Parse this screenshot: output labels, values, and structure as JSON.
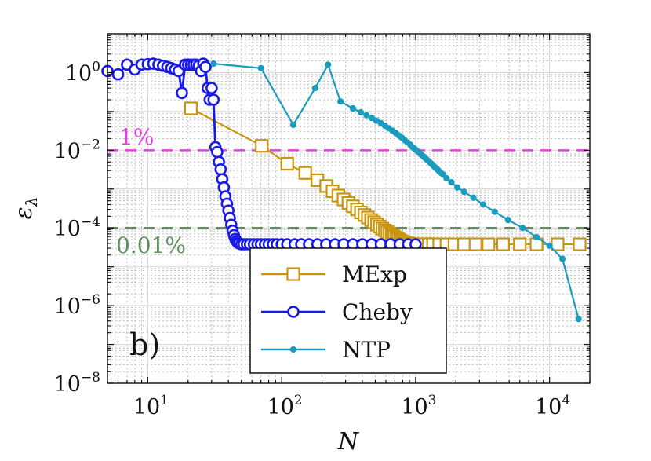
{
  "chart_data": {
    "type": "line",
    "title": "",
    "xlabel": "N",
    "ylabel": "ε",
    "ylabel_sub": "λ",
    "xscale": "log",
    "yscale": "log",
    "xlim": [
      5,
      20000
    ],
    "ylim": [
      1e-08,
      10
    ],
    "grid": true,
    "legend_position": "bottom-right",
    "x_ticks": [
      {
        "value": 10,
        "base": "10",
        "exp": "1"
      },
      {
        "value": 100,
        "base": "10",
        "exp": "2"
      },
      {
        "value": 1000,
        "base": "10",
        "exp": "3"
      },
      {
        "value": 10000,
        "base": "10",
        "exp": "4"
      }
    ],
    "y_ticks": [
      {
        "value": 1,
        "base": "10",
        "exp": "0"
      },
      {
        "value": 0.01,
        "base": "10",
        "exp": "−2"
      },
      {
        "value": 0.0001,
        "base": "10",
        "exp": "−4"
      },
      {
        "value": 1e-06,
        "base": "10",
        "exp": "−6"
      },
      {
        "value": 1e-08,
        "base": "10",
        "exp": "−8"
      }
    ],
    "reference_lines": [
      {
        "label": "1%",
        "value": 0.01,
        "color": "#e43fe3"
      },
      {
        "label": "0.01%",
        "value": 0.0001,
        "color": "#5e8f5e"
      }
    ],
    "panel_label": "b)",
    "series": [
      {
        "name": "MExp",
        "color": "#c9960e",
        "marker": "square",
        "x": [
          21,
          71,
          110,
          150,
          185,
          215,
          240,
          265,
          290,
          315,
          340,
          365,
          390,
          415,
          440,
          465,
          490,
          515,
          540,
          565,
          590,
          615,
          640,
          665,
          690,
          715,
          740,
          765,
          790,
          815,
          840,
          865,
          890,
          915,
          940,
          965,
          990,
          1050,
          1150,
          1250,
          1350,
          1500,
          1700,
          1950,
          2300,
          2800,
          3500,
          4500,
          6000,
          8000,
          11500,
          16800
        ],
        "y": [
          0.12,
          0.013,
          0.0045,
          0.0026,
          0.0017,
          0.0012,
          0.00088,
          0.00068,
          0.00054,
          0.00044,
          0.00036,
          0.0003,
          0.00025,
          0.000215,
          0.000185,
          0.00016,
          0.00014,
          0.000122,
          0.000108,
          9.6e-05,
          8.6e-05,
          7.8e-05,
          7.1e-05,
          6.5e-05,
          6e-05,
          5.5e-05,
          5.1e-05,
          4.8e-05,
          4.5e-05,
          4.3e-05,
          4.1e-05,
          4e-05,
          3.9e-05,
          3.8e-05,
          3.8e-05,
          3.8e-05,
          3.8e-05,
          3.8e-05,
          3.8e-05,
          3.8e-05,
          3.8e-05,
          3.8e-05,
          3.8e-05,
          3.8e-05,
          3.8e-05,
          3.8e-05,
          3.8e-05,
          3.8e-05,
          3.8e-05,
          3.8e-05,
          3.8e-05,
          3.8e-05
        ]
      },
      {
        "name": "Cheby",
        "color": "#1a1ae6",
        "marker": "circle",
        "x": [
          5,
          6,
          7,
          8,
          9,
          10,
          11,
          12,
          13,
          14,
          15,
          16,
          17,
          18,
          19,
          20,
          21,
          22,
          23,
          24,
          25,
          26,
          27,
          28,
          29,
          30,
          31,
          32,
          33,
          34,
          35,
          36,
          37,
          38,
          39,
          40,
          41,
          42,
          43,
          44,
          45,
          46,
          47,
          48,
          50,
          52,
          55,
          58,
          62,
          66,
          70,
          75,
          80,
          86,
          92,
          100,
          110,
          125,
          140,
          160,
          185,
          215,
          250,
          290,
          340,
          400,
          470,
          550,
          650,
          760,
          880,
          1000
        ],
        "y": [
          1.1,
          0.9,
          1.6,
          1.2,
          1.6,
          1.65,
          1.7,
          1.6,
          1.5,
          1.4,
          1.3,
          1.2,
          1.1,
          0.3,
          1.6,
          1.6,
          1.6,
          1.6,
          1.6,
          1.5,
          1.1,
          1.7,
          1.4,
          0.4,
          0.2,
          0.4,
          0.2,
          0.012,
          0.009,
          0.005,
          0.0032,
          0.0018,
          0.0011,
          0.00065,
          0.00042,
          0.00028,
          0.00018,
          0.00012,
          8.5e-05,
          6.5e-05,
          5.2e-05,
          4.6e-05,
          4.2e-05,
          4e-05,
          3.8e-05,
          3.8e-05,
          3.8e-05,
          3.8e-05,
          3.8e-05,
          3.8e-05,
          3.8e-05,
          3.8e-05,
          3.8e-05,
          3.8e-05,
          3.8e-05,
          3.8e-05,
          3.8e-05,
          3.8e-05,
          3.8e-05,
          3.8e-05,
          3.8e-05,
          3.8e-05,
          3.8e-05,
          3.8e-05,
          3.8e-05,
          3.8e-05,
          3.8e-05,
          3.8e-05,
          3.8e-05,
          3.8e-05,
          3.8e-05,
          3.8e-05
        ]
      },
      {
        "name": "NTP",
        "color": "#1a9cbf",
        "marker": "dot",
        "x": [
          31,
          70,
          122,
          178,
          222,
          275,
          340,
          390,
          430,
          470,
          510,
          550,
          590,
          630,
          670,
          710,
          750,
          790,
          830,
          870,
          910,
          950,
          990,
          1030,
          1070,
          1110,
          1150,
          1190,
          1230,
          1270,
          1310,
          1350,
          1390,
          1430,
          1470,
          1510,
          1550,
          1600,
          1700,
          1850,
          2050,
          2300,
          2700,
          3200,
          3900,
          4900,
          6300,
          8000,
          10000,
          12500,
          16500
        ],
        "y": [
          1.7,
          1.3,
          0.045,
          0.4,
          1.6,
          0.18,
          0.12,
          0.095,
          0.08,
          0.068,
          0.058,
          0.05,
          0.043,
          0.037,
          0.032,
          0.028,
          0.024,
          0.021,
          0.018,
          0.016,
          0.014,
          0.012,
          0.0107,
          0.0095,
          0.0085,
          0.0076,
          0.0068,
          0.0061,
          0.0055,
          0.005,
          0.0045,
          0.0041,
          0.0037,
          0.0034,
          0.0031,
          0.0028,
          0.0026,
          0.0024,
          0.0019,
          0.0015,
          0.0011,
          0.00085,
          0.0006,
          0.0004,
          0.00026,
          0.00016,
          0.0001,
          5.8e-05,
          3.5e-05,
          1.6e-05,
          4.5e-07
        ]
      }
    ]
  }
}
